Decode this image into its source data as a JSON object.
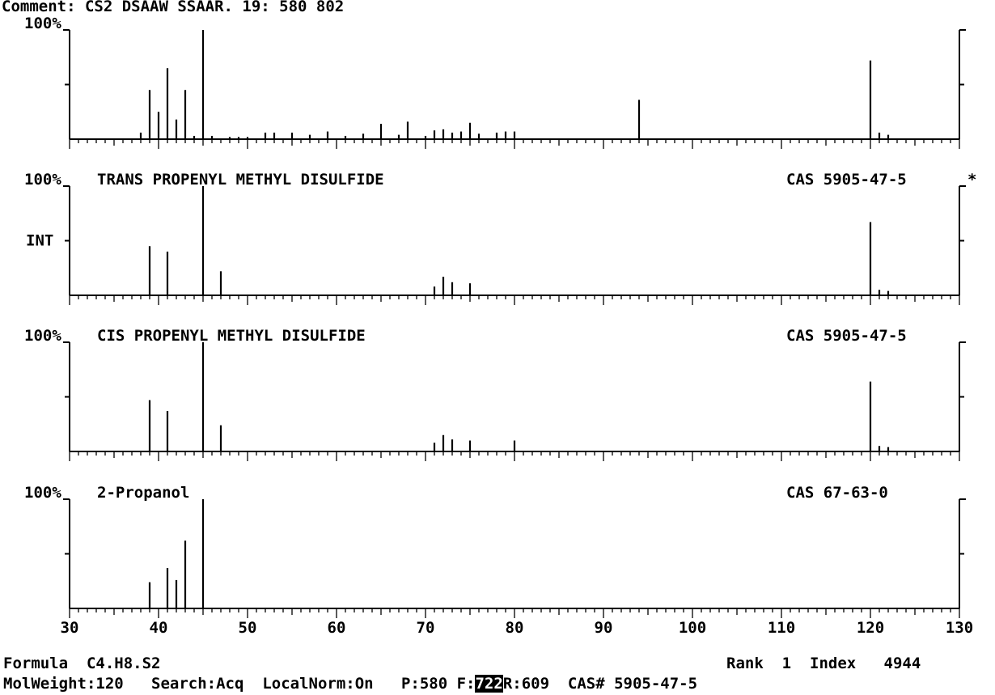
{
  "header": {
    "comment": "Comment: CS2 DSAAW SSAAR. 19: 580 802"
  },
  "chart_data": [
    {
      "type": "bar",
      "panel": "sample",
      "title": "",
      "cas": "",
      "yaxis_top_label": "100%",
      "ylim": [
        0,
        100
      ],
      "xlim": [
        30,
        130
      ],
      "x": [
        38,
        39,
        40,
        41,
        42,
        43,
        44,
        45,
        46,
        48,
        49,
        50,
        52,
        53,
        55,
        57,
        59,
        61,
        63,
        65,
        67,
        68,
        70,
        71,
        72,
        73,
        74,
        75,
        76,
        78,
        79,
        80,
        94,
        120,
        121,
        122
      ],
      "values": [
        6,
        45,
        25,
        65,
        18,
        45,
        3,
        100,
        3,
        2,
        2,
        2,
        6,
        6,
        6,
        4,
        7,
        3,
        5,
        14,
        4,
        16,
        3,
        8,
        9,
        6,
        7,
        15,
        5,
        6,
        7,
        7,
        36,
        72,
        6,
        4
      ]
    },
    {
      "type": "bar",
      "panel": "reference-1",
      "title": "TRANS PROPENYL METHYL DISULFIDE",
      "cas": "CAS 5905-47-5",
      "marker": "*",
      "yaxis_top_label": "100%",
      "yaxis_mid_label": "INT",
      "ylim": [
        0,
        100
      ],
      "xlim": [
        30,
        130
      ],
      "x": [
        39,
        41,
        45,
        47,
        71,
        72,
        73,
        75,
        120,
        121,
        122
      ],
      "values": [
        45,
        40,
        100,
        22,
        8,
        17,
        12,
        11,
        67,
        5,
        4
      ]
    },
    {
      "type": "bar",
      "panel": "reference-2",
      "title": "CIS PROPENYL METHYL DISULFIDE",
      "cas": "CAS 5905-47-5",
      "yaxis_top_label": "100%",
      "ylim": [
        0,
        100
      ],
      "xlim": [
        30,
        130
      ],
      "x": [
        39,
        41,
        45,
        47,
        71,
        72,
        73,
        75,
        80,
        120,
        121,
        122
      ],
      "values": [
        47,
        37,
        100,
        24,
        8,
        15,
        11,
        10,
        10,
        64,
        5,
        4
      ]
    },
    {
      "type": "bar",
      "panel": "reference-3",
      "title": "2-Propanol",
      "cas": "CAS 67-63-0",
      "yaxis_top_label": "100%",
      "ylim": [
        0,
        100
      ],
      "xlim": [
        30,
        130
      ],
      "x": [
        39,
        41,
        42,
        43,
        45
      ],
      "values": [
        24,
        37,
        26,
        62,
        100
      ],
      "xticks": [
        "30",
        "40",
        "50",
        "60",
        "70",
        "80",
        "90",
        "100",
        "110",
        "120",
        "130"
      ]
    }
  ],
  "footer": {
    "formula_label": "Formula",
    "formula_value": "C4.H8.S2",
    "rank_label": "Rank",
    "rank_value": "1",
    "index_label": "Index",
    "index_value": "4944",
    "molweight": "MolWeight:120",
    "search": "Search:Acq",
    "localnorm": "LocalNorm:On",
    "p": "P:580",
    "f_label": "F:",
    "f_value": "722",
    "r": "R:609",
    "cas": "CAS# 5905-47-5"
  }
}
